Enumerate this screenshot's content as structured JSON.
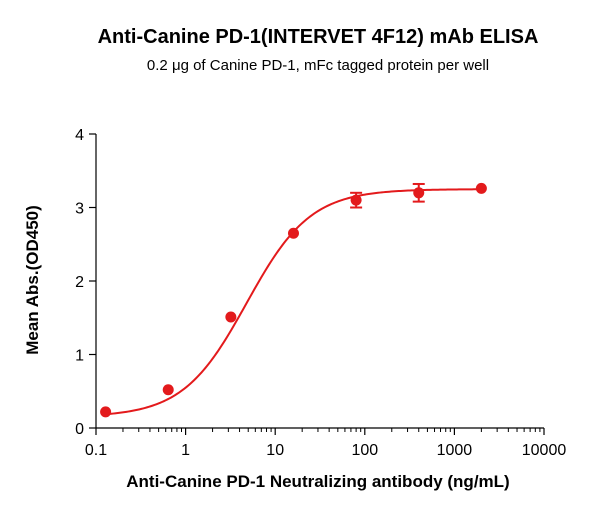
{
  "chart_data": {
    "type": "scatter",
    "title": "Anti-Canine PD-1(INTERVET 4F12) mAb ELISA",
    "subtitle": "0.2 μg of Canine PD-1, mFc tagged protein per well",
    "xlabel": "Anti-Canine PD-1 Neutralizing antibody (ng/mL)",
    "ylabel": "Mean Abs.(OD450)",
    "x_scale": "log",
    "xlim": [
      0.1,
      10000
    ],
    "ylim": [
      0,
      4
    ],
    "x_ticks": [
      0.1,
      1,
      10,
      100,
      1000,
      10000
    ],
    "x_tick_labels": [
      "0.1",
      "1",
      "10",
      "100",
      "1000",
      "10000"
    ],
    "y_ticks": [
      0,
      1,
      2,
      3,
      4
    ],
    "y_tick_labels": [
      "0",
      "1",
      "2",
      "3",
      "4"
    ],
    "grid": false,
    "legend": "none",
    "color": "#e31a1c",
    "points": [
      {
        "x": 0.128,
        "y": 0.22,
        "err": 0.02
      },
      {
        "x": 0.64,
        "y": 0.52,
        "err": 0.02
      },
      {
        "x": 3.2,
        "y": 1.51,
        "err": 0.02
      },
      {
        "x": 16,
        "y": 2.65,
        "err": 0.03
      },
      {
        "x": 80,
        "y": 3.1,
        "err": 0.1
      },
      {
        "x": 400,
        "y": 3.2,
        "err": 0.12
      },
      {
        "x": 2000,
        "y": 3.26,
        "err": 0.03
      }
    ],
    "fit": {
      "model": "4PL",
      "bottom": 0.15,
      "top": 3.25,
      "ec50": 4.8,
      "hill": 1.22
    }
  }
}
